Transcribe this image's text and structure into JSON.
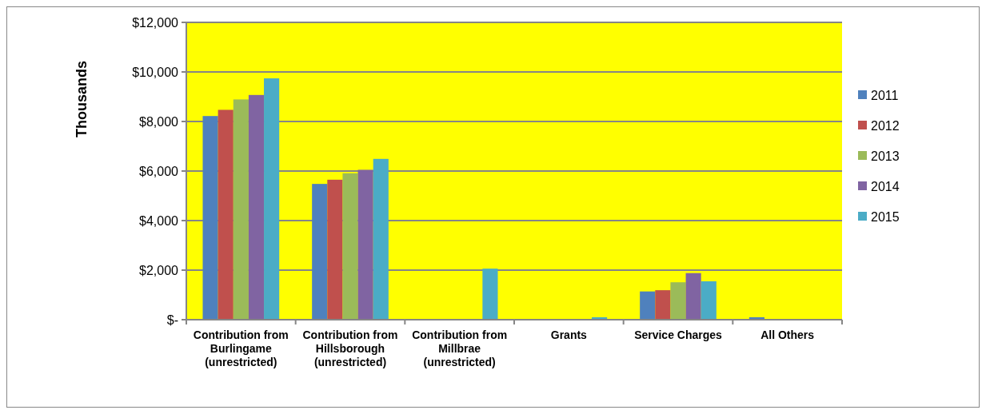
{
  "chart_data": {
    "type": "bar",
    "ylabel": "Thousands",
    "categories": [
      "Contribution from Burlingame (unrestricted)",
      "Contribution from Hillsborough (unrestricted)",
      "Contribution from Millbrae (unrestricted)",
      "Grants",
      "Service Charges",
      "All Others"
    ],
    "series": [
      {
        "name": "2011",
        "color": "#4f81bd",
        "values": [
          8220,
          5480,
          0,
          0,
          1140,
          100
        ]
      },
      {
        "name": "2012",
        "color": "#c0504d",
        "values": [
          8470,
          5650,
          0,
          0,
          1190,
          30
        ]
      },
      {
        "name": "2013",
        "color": "#9bbb59",
        "values": [
          8890,
          5910,
          0,
          0,
          1510,
          0
        ]
      },
      {
        "name": "2014",
        "color": "#8064a2",
        "values": [
          9070,
          6050,
          0,
          0,
          1880,
          0
        ]
      },
      {
        "name": "2015",
        "color": "#4bacc6",
        "values": [
          9740,
          6490,
          2060,
          100,
          1550,
          0
        ]
      }
    ],
    "ylim": [
      0,
      12000
    ],
    "yticks": [
      {
        "value": 0,
        "label": "$-"
      },
      {
        "value": 2000,
        "label": "$2,000"
      },
      {
        "value": 4000,
        "label": "$4,000"
      },
      {
        "value": 6000,
        "label": "$6,000"
      },
      {
        "value": 8000,
        "label": "$8,000"
      },
      {
        "value": 10000,
        "label": "$10,000"
      },
      {
        "value": 12000,
        "label": "$12,000"
      }
    ],
    "grid": "y",
    "legend": "right"
  }
}
